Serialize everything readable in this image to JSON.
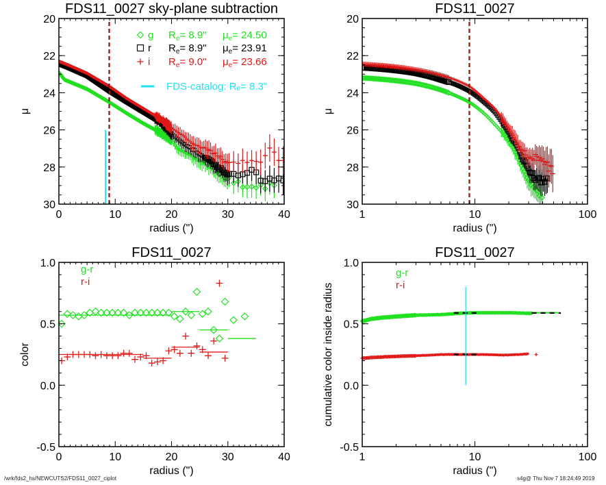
{
  "colors": {
    "g": "#22e022",
    "r": "#000000",
    "i": "#e01818",
    "catalog": "#22e0f0"
  },
  "footer": {
    "path": "/wrk/fds2_hs/NEWCUTS2/FDS11_0027_ciplot",
    "stamp": "s4g@  Thu Nov  7 18:24:49 2019"
  },
  "chart_data": [
    {
      "id": "profile-linear",
      "type": "scatter",
      "title": "FDS11_0027 sky-plane subtraction",
      "xlabel": "radius (\")",
      "ylabel": "μ",
      "xscale": "linear",
      "xlim": [
        0,
        40
      ],
      "ylim": [
        30,
        20
      ],
      "xticks": [
        "0",
        "10",
        "20",
        "30",
        "40"
      ],
      "yticks": [
        "20",
        "22",
        "24",
        "26",
        "28",
        "30"
      ],
      "legend": [
        {
          "band": "g",
          "marker": "diamond",
          "re_label": "Rₑ=",
          "re": "8.9\"",
          "mu_label": "μₑ=",
          "mu": "24.50"
        },
        {
          "band": "r",
          "marker": "square",
          "re_label": "Rₑ=",
          "re": "8.9\"",
          "mu_label": "μₑ=",
          "mu": "23.91"
        },
        {
          "band": "i",
          "marker": "plus",
          "re_label": "Rₑ=",
          "re": "9.0\"",
          "mu_label": "μₑ=",
          "mu": "23.66"
        },
        {
          "band": "catalog",
          "marker": "line",
          "text": "FDS-catalog: Rₑ=",
          "re": "8.3\""
        }
      ],
      "vlines": [
        {
          "x": 8.9,
          "color": "g",
          "style": "dash"
        },
        {
          "x": 8.9,
          "color": "r",
          "style": "dash"
        },
        {
          "x": 9.0,
          "color": "i",
          "style": "dash"
        },
        {
          "x": 8.3,
          "color": "catalog",
          "style": "solid",
          "y_from": 30,
          "y_to": 26
        }
      ],
      "series": [
        {
          "name": "g",
          "profile": [
            [
              0,
              22.9
            ],
            [
              1,
              23.3
            ],
            [
              3,
              23.55
            ],
            [
              5,
              23.8
            ],
            [
              8.9,
              24.5
            ],
            [
              12,
              25.1
            ],
            [
              15,
              25.65
            ],
            [
              18,
              26.15
            ],
            [
              20,
              26.5
            ],
            [
              21,
              27.0
            ],
            [
              23,
              27.3
            ],
            [
              25,
              27.7
            ],
            [
              27,
              28.0
            ],
            [
              29,
              28.5
            ],
            [
              31,
              28.8
            ],
            [
              33,
              29.0
            ],
            [
              35,
              29.1
            ],
            [
              37,
              29.0
            ],
            [
              39,
              29.2
            ]
          ]
        },
        {
          "name": "r",
          "profile": [
            [
              0,
              22.45
            ],
            [
              2,
              22.7
            ],
            [
              5,
              23.1
            ],
            [
              8.9,
              23.91
            ],
            [
              12,
              24.5
            ],
            [
              15,
              25.05
            ],
            [
              18,
              25.6
            ],
            [
              20,
              26.2
            ],
            [
              22,
              26.7
            ],
            [
              24,
              27.1
            ],
            [
              26,
              27.5
            ],
            [
              28,
              27.9
            ],
            [
              30,
              28.4
            ],
            [
              32,
              28.5
            ],
            [
              34,
              28.1
            ],
            [
              36,
              28.7
            ],
            [
              40,
              28.8
            ]
          ]
        },
        {
          "name": "i",
          "profile": [
            [
              0,
              22.3
            ],
            [
              2,
              22.55
            ],
            [
              5,
              22.95
            ],
            [
              9,
              23.66
            ],
            [
              12,
              24.3
            ],
            [
              15,
              24.85
            ],
            [
              18,
              25.4
            ],
            [
              20,
              25.9
            ],
            [
              22,
              26.3
            ],
            [
              24,
              26.8
            ],
            [
              26,
              27.0
            ],
            [
              28,
              27.3
            ],
            [
              30,
              27.8
            ],
            [
              33,
              27.7
            ],
            [
              36,
              27.6
            ],
            [
              37.5,
              27.0
            ],
            [
              39,
              27.6
            ],
            [
              40,
              27.7
            ]
          ]
        }
      ]
    },
    {
      "id": "profile-log",
      "type": "scatter",
      "title": "FDS11_0027",
      "xlabel": "radius (\")",
      "ylabel": "μ",
      "xscale": "log",
      "xlim": [
        1,
        100
      ],
      "ylim": [
        30,
        20
      ],
      "xticks": [
        "1",
        "10",
        "100"
      ],
      "yticks": [
        "20",
        "22",
        "24",
        "26",
        "28",
        "30"
      ],
      "vlines": [
        {
          "x": 8.9,
          "color": "g",
          "style": "dash"
        },
        {
          "x": 8.9,
          "color": "r",
          "style": "dash"
        },
        {
          "x": 9.0,
          "color": "i",
          "style": "dash"
        }
      ],
      "series": [
        {
          "name": "g",
          "profile": [
            [
              1,
              23.2
            ],
            [
              2,
              23.35
            ],
            [
              3,
              23.5
            ],
            [
              5,
              23.85
            ],
            [
              7,
              24.2
            ],
            [
              8.9,
              24.5
            ],
            [
              12,
              25.1
            ],
            [
              15,
              25.7
            ],
            [
              20,
              26.6
            ],
            [
              25,
              27.7
            ],
            [
              30,
              28.8
            ],
            [
              35,
              29.3
            ],
            [
              40,
              29.6
            ]
          ]
        },
        {
          "name": "r",
          "profile": [
            [
              1,
              22.65
            ],
            [
              2,
              22.8
            ],
            [
              3,
              22.95
            ],
            [
              5,
              23.3
            ],
            [
              7,
              23.6
            ],
            [
              8.9,
              23.91
            ],
            [
              12,
              24.5
            ],
            [
              15,
              25.05
            ],
            [
              20,
              26.2
            ],
            [
              25,
              27.2
            ],
            [
              30,
              28.1
            ],
            [
              35,
              28.7
            ],
            [
              45,
              28.7
            ]
          ]
        },
        {
          "name": "i",
          "profile": [
            [
              1,
              22.45
            ],
            [
              2,
              22.6
            ],
            [
              3,
              22.75
            ],
            [
              5,
              23.05
            ],
            [
              7,
              23.35
            ],
            [
              9,
              23.66
            ],
            [
              12,
              24.3
            ],
            [
              15,
              24.85
            ],
            [
              20,
              25.9
            ],
            [
              25,
              26.9
            ],
            [
              30,
              27.5
            ],
            [
              38,
              27.5
            ],
            [
              50,
              28.3
            ]
          ]
        }
      ]
    },
    {
      "id": "color-profile",
      "type": "scatter",
      "title": "FDS11_0027",
      "xlabel": "radius (\")",
      "ylabel": "color",
      "xscale": "linear",
      "xlim": [
        0,
        40
      ],
      "ylim": [
        -0.5,
        1.0
      ],
      "xticks": [
        "0",
        "10",
        "20",
        "30",
        "40"
      ],
      "yticks": [
        "1.0",
        "0.5",
        "0.0",
        "-0.5"
      ],
      "legend": [
        {
          "name": "g-r",
          "color": "g"
        },
        {
          "name": "r-i",
          "color": "i"
        }
      ],
      "series": [
        {
          "name": "g-r",
          "marker": "diamond",
          "points": [
            [
              0.5,
              0.5
            ],
            [
              1.5,
              0.58
            ],
            [
              2.5,
              0.57
            ],
            [
              3.5,
              0.56
            ],
            [
              4.5,
              0.57
            ],
            [
              5.5,
              0.59
            ],
            [
              6.5,
              0.6
            ],
            [
              7.5,
              0.59
            ],
            [
              8.5,
              0.59
            ],
            [
              9.5,
              0.59
            ],
            [
              10.5,
              0.59
            ],
            [
              11.5,
              0.59
            ],
            [
              12.5,
              0.57
            ],
            [
              13.5,
              0.59
            ],
            [
              14.5,
              0.59
            ],
            [
              15.5,
              0.59
            ],
            [
              16.5,
              0.59
            ],
            [
              17.5,
              0.59
            ],
            [
              18.5,
              0.59
            ],
            [
              19.5,
              0.59
            ],
            [
              20.5,
              0.56
            ],
            [
              21.5,
              0.54
            ],
            [
              22.5,
              0.6
            ],
            [
              23.5,
              0.57
            ],
            [
              24.5,
              0.76
            ],
            [
              25.5,
              0.58
            ],
            [
              26.5,
              0.6
            ],
            [
              27.5,
              0.45
            ],
            [
              28.5,
              0.38
            ],
            [
              29.5,
              0.68
            ],
            [
              31,
              0.53
            ],
            [
              33,
              0.56
            ]
          ],
          "bins": [
            [
              0,
              20,
              0.57
            ],
            [
              20,
              25,
              0.6
            ],
            [
              25,
              30,
              0.45
            ],
            [
              30,
              35,
              0.38
            ]
          ]
        },
        {
          "name": "r-i",
          "marker": "plus",
          "points": [
            [
              0.5,
              0.2
            ],
            [
              1.5,
              0.23
            ],
            [
              2.5,
              0.25
            ],
            [
              3.5,
              0.25
            ],
            [
              4.5,
              0.25
            ],
            [
              5.5,
              0.25
            ],
            [
              6.5,
              0.24
            ],
            [
              7.5,
              0.25
            ],
            [
              8.5,
              0.24
            ],
            [
              9.5,
              0.24
            ],
            [
              10.5,
              0.24
            ],
            [
              11.5,
              0.26
            ],
            [
              12.5,
              0.26
            ],
            [
              13.5,
              0.21
            ],
            [
              14.5,
              0.23
            ],
            [
              15.5,
              0.24
            ],
            [
              16.5,
              0.18
            ],
            [
              17.5,
              0.19
            ],
            [
              18.5,
              0.2
            ],
            [
              19.5,
              0.28
            ],
            [
              20.5,
              0.29
            ],
            [
              21.5,
              0.26
            ],
            [
              22.5,
              0.4
            ],
            [
              23.5,
              0.26
            ],
            [
              24.5,
              0.32
            ],
            [
              25.5,
              0.29
            ],
            [
              26.5,
              0.24
            ],
            [
              27.5,
              0.36
            ],
            [
              28.5,
              0.83
            ],
            [
              29.5,
              0.22
            ]
          ],
          "bins": [
            [
              0,
              15,
              0.25
            ],
            [
              15,
              20,
              0.22
            ],
            [
              20,
              25,
              0.31
            ],
            [
              25,
              30,
              0.27
            ]
          ]
        }
      ]
    },
    {
      "id": "cumulative-color",
      "type": "scatter",
      "title": "FDS11_0027",
      "xlabel": "radius (\")",
      "ylabel": "cumulative color inside radius",
      "xscale": "log",
      "xlim": [
        1,
        100
      ],
      "ylim": [
        -0.5,
        1.0
      ],
      "xticks": [
        "1",
        "10",
        "100"
      ],
      "yticks": [
        "1.0",
        "0.5",
        "0.0",
        "-0.5"
      ],
      "legend": [
        {
          "name": "g-r",
          "color": "g"
        },
        {
          "name": "r-i",
          "color": "i"
        }
      ],
      "vline": {
        "x": 8.3,
        "color": "catalog",
        "y_from": 0.0,
        "y_to": 0.8
      },
      "series": [
        {
          "name": "g-r",
          "marker": "diamond",
          "profile": [
            [
              1,
              0.52
            ],
            [
              1.2,
              0.54
            ],
            [
              1.5,
              0.55
            ],
            [
              2,
              0.56
            ],
            [
              3,
              0.57
            ],
            [
              5,
              0.575
            ],
            [
              7,
              0.585
            ],
            [
              10,
              0.59
            ],
            [
              20,
              0.59
            ],
            [
              30,
              0.585
            ],
            [
              55,
              0.59
            ]
          ],
          "xmax": 32,
          "dash_segments": [
            [
              6.5,
              11
            ],
            [
              32,
              58
            ]
          ]
        },
        {
          "name": "r-i",
          "marker": "plus",
          "profile": [
            [
              1,
              0.22
            ],
            [
              1.2,
              0.225
            ],
            [
              1.5,
              0.23
            ],
            [
              2,
              0.235
            ],
            [
              3,
              0.24
            ],
            [
              5,
              0.25
            ],
            [
              8,
              0.25
            ],
            [
              12,
              0.25
            ],
            [
              18,
              0.245
            ],
            [
              30,
              0.255
            ]
          ],
          "xmax": 30,
          "extra": [
            [
              35,
              0.25
            ]
          ],
          "dash_segments": [
            [
              6.5,
              11
            ]
          ]
        }
      ]
    }
  ]
}
